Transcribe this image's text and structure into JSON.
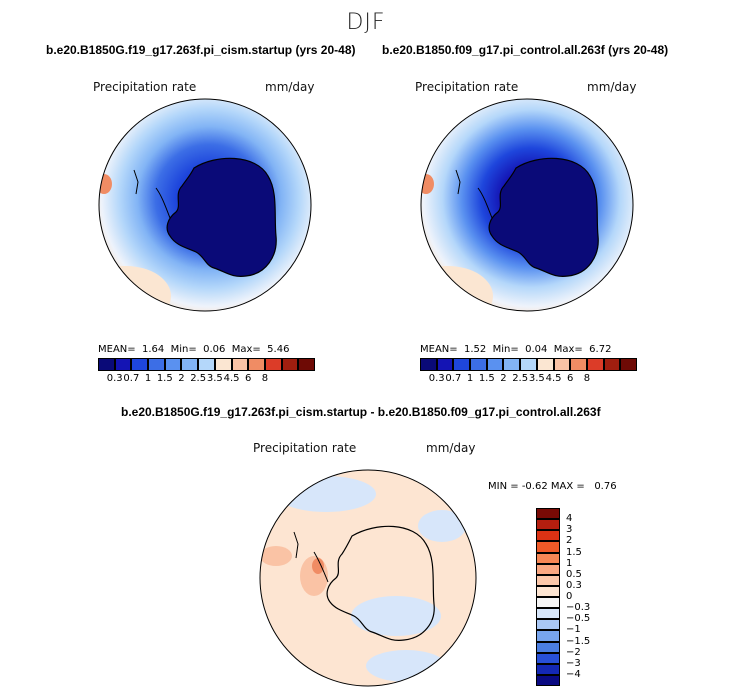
{
  "figure": {
    "season": "DJF",
    "left_title": "b.e20.B1850G.f19_g17.263f.pi_cism.startup (yrs 20-48)",
    "right_title": "b.e20.B1850.f09_g17.pi_control.all.263f (yrs 20-48)",
    "diff_title": "b.e20.B1850G.f19_g17.263f.pi_cism.startup - b.e20.B1850.f09_g17.pi_control.all.263f"
  },
  "panels": {
    "left": {
      "field": "Precipitation rate",
      "units": "mm/day",
      "stats": {
        "mean_label": "MEAN=",
        "mean": "1.64",
        "min_label": "Min=",
        "min": "0.06",
        "max_label": "Max=",
        "max": "5.46"
      }
    },
    "right": {
      "field": "Precipitation rate",
      "units": "mm/day",
      "stats": {
        "mean_label": "MEAN=",
        "mean": "1.52",
        "min_label": "Min=",
        "min": "0.04",
        "max_label": "Max=",
        "max": "6.72"
      }
    },
    "diff": {
      "field": "Precipitation rate",
      "units": "mm/day",
      "stats": {
        "min_label": "MIN =",
        "min": "-0.62",
        "max_label": "MAX =",
        "max": "0.76"
      }
    }
  },
  "colorbars": {
    "abs": {
      "ticks": [
        "0.3",
        "0.7",
        "1",
        "1.5",
        "2",
        "2.5",
        "3.5",
        "4.5",
        "6",
        "8"
      ],
      "colors": [
        "#0a0a78",
        "#1414b4",
        "#1e46dc",
        "#3c6ee6",
        "#5a91f0",
        "#82b4f5",
        "#b4d7fa",
        "#fbe6d2",
        "#fac3a5",
        "#f08c64",
        "#dc3c28",
        "#a01e0f",
        "#6e0a05"
      ]
    },
    "diff": {
      "ticks": [
        "4",
        "3",
        "2",
        "1.5",
        "1",
        "0.5",
        "0.3",
        "0",
        "−0.3",
        "−0.5",
        "−1",
        "−1.5",
        "−2",
        "−3",
        "−4"
      ],
      "colors": [
        "#780a05",
        "#b41e0f",
        "#dc3214",
        "#f05a28",
        "#f78755",
        "#faa882",
        "#fcc8aa",
        "#fde5d2",
        "#f5f5f5",
        "#d7e6fa",
        "#aac8f5",
        "#78a5ee",
        "#4b7ee1",
        "#2850d7",
        "#1428b4",
        "#0a0a82"
      ]
    }
  },
  "colors": {
    "map_background": "#eef3fb",
    "coastline": "#000000"
  }
}
